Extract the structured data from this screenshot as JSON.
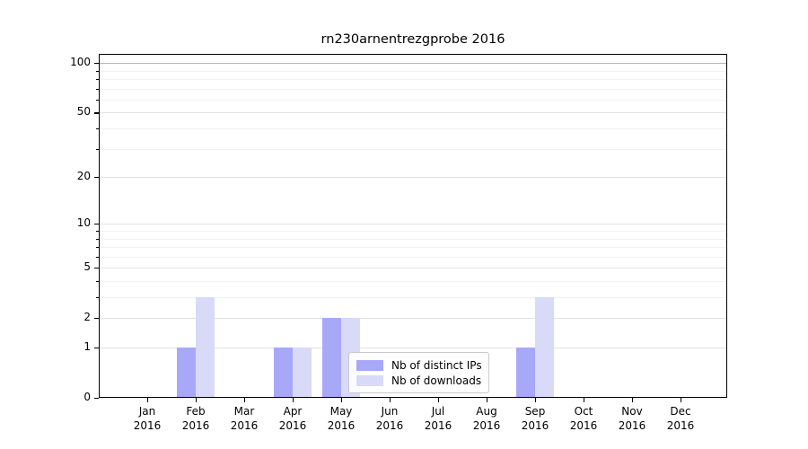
{
  "title": "rn230arnentrezgprobe 2016",
  "chart_data": {
    "type": "bar",
    "title": "rn230arnentrezgprobe 2016",
    "categories": [
      "Jan 2016",
      "Feb 2016",
      "Mar 2016",
      "Apr 2016",
      "May 2016",
      "Jun 2016",
      "Jul 2016",
      "Aug 2016",
      "Sep 2016",
      "Oct 2016",
      "Nov 2016",
      "Dec 2016"
    ],
    "x_tick_months": [
      "Jan",
      "Feb",
      "Mar",
      "Apr",
      "May",
      "Jun",
      "Jul",
      "Aug",
      "Sep",
      "Oct",
      "Nov",
      "Dec"
    ],
    "x_tick_year": "2016",
    "series": [
      {
        "name": "Nb of distinct IPs",
        "color": "#a8a8f8",
        "values": [
          0,
          1,
          0,
          1,
          2,
          0,
          0,
          0,
          1,
          0,
          0,
          0
        ]
      },
      {
        "name": "Nb of downloads",
        "color": "#d9d9f8",
        "values": [
          0,
          3,
          0,
          1,
          2,
          0,
          0,
          0,
          3,
          0,
          0,
          0
        ]
      }
    ],
    "xlabel": "",
    "ylabel": "",
    "y_scale": "log1p",
    "ylim": [
      0,
      113
    ],
    "y_major_ticks": [
      0,
      1,
      2,
      5,
      10,
      20,
      50,
      100
    ],
    "y_minor_ticks": [
      3,
      4,
      6,
      7,
      8,
      9,
      30,
      40,
      60,
      70,
      80,
      90
    ],
    "grid": "horizontal",
    "legend_position": "lower center"
  }
}
